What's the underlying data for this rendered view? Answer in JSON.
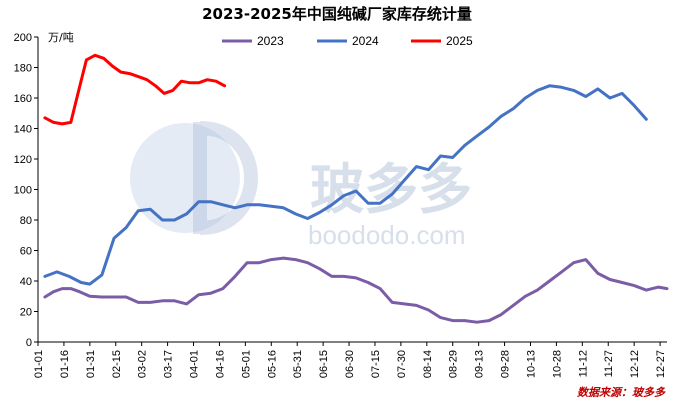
{
  "chart_data": {
    "type": "line",
    "title": "2023-2025年中国纯碱厂家库存统计量",
    "unit_label": "万/吨",
    "ylim": [
      0,
      200
    ],
    "yticks": [
      0,
      20,
      40,
      60,
      80,
      100,
      120,
      140,
      160,
      180,
      200
    ],
    "x_tick_labels": [
      "01-01",
      "01-16",
      "01-31",
      "02-15",
      "03-02",
      "03-17",
      "04-01",
      "04-16",
      "05-01",
      "05-16",
      "05-31",
      "06-15",
      "06-30",
      "07-15",
      "07-30",
      "08-14",
      "08-29",
      "09-13",
      "09-28",
      "10-13",
      "10-28",
      "11-12",
      "11-27",
      "12-12",
      "12-27"
    ],
    "x_domain": [
      "01-01",
      "12-31"
    ],
    "grid": false,
    "legend_position": "top",
    "series": [
      {
        "name": "2023",
        "color": "#7b5ca6",
        "points": [
          [
            "01-05",
            29.5
          ],
          [
            "01-10",
            33
          ],
          [
            "01-15",
            35
          ],
          [
            "01-20",
            35
          ],
          [
            "01-25",
            33
          ],
          [
            "01-31",
            30
          ],
          [
            "02-07",
            29.5
          ],
          [
            "02-14",
            29.5
          ],
          [
            "02-21",
            29.5
          ],
          [
            "02-28",
            26
          ],
          [
            "03-07",
            26
          ],
          [
            "03-14",
            27
          ],
          [
            "03-21",
            27
          ],
          [
            "03-28",
            25
          ],
          [
            "04-04",
            31
          ],
          [
            "04-11",
            32
          ],
          [
            "04-18",
            35
          ],
          [
            "04-25",
            43
          ],
          [
            "05-02",
            52
          ],
          [
            "05-09",
            52
          ],
          [
            "05-16",
            54
          ],
          [
            "05-23",
            55
          ],
          [
            "05-30",
            54
          ],
          [
            "06-06",
            52
          ],
          [
            "06-13",
            48
          ],
          [
            "06-20",
            43
          ],
          [
            "06-27",
            43
          ],
          [
            "07-04",
            42
          ],
          [
            "07-11",
            39
          ],
          [
            "07-18",
            35
          ],
          [
            "07-25",
            26
          ],
          [
            "08-01",
            25
          ],
          [
            "08-08",
            24
          ],
          [
            "08-15",
            21
          ],
          [
            "08-22",
            16
          ],
          [
            "08-29",
            14
          ],
          [
            "09-05",
            14
          ],
          [
            "09-12",
            13
          ],
          [
            "09-19",
            14
          ],
          [
            "09-26",
            18
          ],
          [
            "10-03",
            24
          ],
          [
            "10-10",
            30
          ],
          [
            "10-17",
            34
          ],
          [
            "10-24",
            40
          ],
          [
            "10-31",
            46
          ],
          [
            "11-07",
            52
          ],
          [
            "11-14",
            54
          ],
          [
            "11-21",
            45
          ],
          [
            "11-28",
            41
          ],
          [
            "12-05",
            39
          ],
          [
            "12-12",
            37
          ],
          [
            "12-19",
            34
          ],
          [
            "12-26",
            36
          ],
          [
            "12-31",
            35
          ]
        ]
      },
      {
        "name": "2024",
        "color": "#4472c4",
        "points": [
          [
            "01-05",
            43
          ],
          [
            "01-12",
            46
          ],
          [
            "01-19",
            43
          ],
          [
            "01-26",
            39
          ],
          [
            "01-31",
            38
          ],
          [
            "02-07",
            44
          ],
          [
            "02-14",
            68
          ],
          [
            "02-21",
            75
          ],
          [
            "02-28",
            86
          ],
          [
            "03-07",
            87
          ],
          [
            "03-14",
            80
          ],
          [
            "03-21",
            80
          ],
          [
            "03-28",
            84
          ],
          [
            "04-04",
            92
          ],
          [
            "04-11",
            92
          ],
          [
            "04-18",
            90
          ],
          [
            "04-25",
            88
          ],
          [
            "05-02",
            90
          ],
          [
            "05-09",
            90
          ],
          [
            "05-16",
            89
          ],
          [
            "05-23",
            88
          ],
          [
            "05-30",
            84
          ],
          [
            "06-06",
            81
          ],
          [
            "06-13",
            85
          ],
          [
            "06-20",
            90
          ],
          [
            "06-27",
            96
          ],
          [
            "07-04",
            99
          ],
          [
            "07-11",
            91
          ],
          [
            "07-18",
            91
          ],
          [
            "07-25",
            97
          ],
          [
            "08-01",
            106
          ],
          [
            "08-08",
            115
          ],
          [
            "08-15",
            113
          ],
          [
            "08-22",
            122
          ],
          [
            "08-29",
            121
          ],
          [
            "09-05",
            129
          ],
          [
            "09-12",
            135
          ],
          [
            "09-19",
            141
          ],
          [
            "09-26",
            148
          ],
          [
            "10-03",
            153
          ],
          [
            "10-10",
            160
          ],
          [
            "10-17",
            165
          ],
          [
            "10-24",
            168
          ],
          [
            "10-31",
            167
          ],
          [
            "11-07",
            165
          ],
          [
            "11-14",
            161
          ],
          [
            "11-21",
            166
          ],
          [
            "11-28",
            160
          ],
          [
            "12-05",
            163
          ],
          [
            "12-12",
            155
          ],
          [
            "12-19",
            146
          ]
        ]
      },
      {
        "name": "2025",
        "color": "#ff0000",
        "points": [
          [
            "01-05",
            147
          ],
          [
            "01-10",
            144
          ],
          [
            "01-15",
            143
          ],
          [
            "01-20",
            144
          ],
          [
            "01-25",
            167
          ],
          [
            "01-29",
            185
          ],
          [
            "02-03",
            188
          ],
          [
            "02-08",
            186
          ],
          [
            "02-13",
            181
          ],
          [
            "02-18",
            177
          ],
          [
            "02-23",
            176
          ],
          [
            "02-28",
            174
          ],
          [
            "03-05",
            172
          ],
          [
            "03-10",
            168
          ],
          [
            "03-15",
            163
          ],
          [
            "03-20",
            165
          ],
          [
            "03-25",
            171
          ],
          [
            "03-30",
            170
          ],
          [
            "04-04",
            170
          ],
          [
            "04-09",
            172
          ],
          [
            "04-14",
            171
          ],
          [
            "04-19",
            168
          ]
        ]
      }
    ]
  },
  "source": "数据来源：玻多多",
  "watermark": {
    "cn": "玻多多",
    "url": "boododo.com"
  }
}
